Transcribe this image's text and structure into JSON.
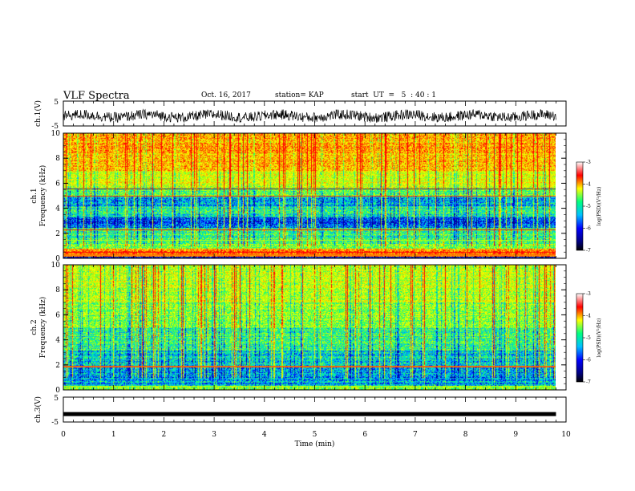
{
  "header": {
    "title": "VLF Spectra",
    "date": "Oct. 16, 2017",
    "station": "station= KAP",
    "start": "start  UT  =   5  : 40 : 1"
  },
  "chart_data": [
    {
      "type": "line",
      "panel": "ch1-waveform",
      "ylabel": "ch.1(V)",
      "xlim": [
        0,
        10
      ],
      "ylim": [
        -5,
        5
      ],
      "yticks": [
        "5",
        "-5"
      ],
      "series": [
        {
          "description": "noisy waveform fluctuating approximately between -3.5 V and 2.5 V, centered near -1 V"
        }
      ]
    },
    {
      "type": "heatmap",
      "panel": "ch1-spectrogram",
      "ylabel": "ch.1\nFrequency (kHz)",
      "xlim": [
        0,
        9.8
      ],
      "ylim": [
        0,
        10
      ],
      "yticks": [
        "0",
        "2",
        "4",
        "6",
        "8",
        "10"
      ],
      "colorbar": {
        "label": "log(PSD)(V²/Hz)",
        "range": [
          -7,
          -3
        ],
        "ticks": [
          "-3",
          "-4",
          "-5",
          "-6",
          "-7"
        ]
      },
      "features": [
        "dominant high power (red/yellow) from 5.5 to 10 kHz",
        "green/cyan band 0.5 to 5.5 kHz",
        "blue low power bands near 3 and 4.5 kHz",
        "horizontal interference lines near 0.3, 0.5, 2.3, 5.0, 5.6 kHz",
        "vertical broadband sferic streaks throughout"
      ]
    },
    {
      "type": "heatmap",
      "panel": "ch2-spectrogram",
      "ylabel": "ch.2\nFrequency (kHz)",
      "xlim": [
        0,
        9.8
      ],
      "ylim": [
        0,
        10
      ],
      "yticks": [
        "0",
        "2",
        "4",
        "6",
        "8",
        "10"
      ],
      "colorbar": {
        "label": "log(PSD)(V²/Hz)",
        "range": [
          -7,
          -3
        ],
        "ticks": [
          "-3",
          "-4",
          "-5",
          "-6",
          "-7"
        ]
      },
      "features": [
        "green/yellow power 2 to 10 kHz",
        "blue/cyan low power band 0 to 2 kHz",
        "horizontal line near 1.9 kHz",
        "vertical broadband sferic streaks throughout"
      ]
    },
    {
      "type": "line",
      "panel": "ch3-waveform",
      "ylabel": "ch.3(V)",
      "xlabel": "Time  (min)",
      "xlim": [
        0,
        10
      ],
      "ylim": [
        -5,
        5
      ],
      "yticks": [
        "5",
        "-5"
      ],
      "xticks": [
        "0",
        "1",
        "2",
        "3",
        "4",
        "5",
        "6",
        "7",
        "8",
        "9",
        "10"
      ],
      "series": [
        {
          "x": [
            0,
            9.8
          ],
          "y": [
            -1.8,
            -1.8
          ]
        }
      ]
    }
  ],
  "colors": {
    "axis": "#000000",
    "colormap": [
      "#000080",
      "#0000ff",
      "#00c0ff",
      "#00ff80",
      "#c0ff00",
      "#ffff00",
      "#ff8000",
      "#ff0000",
      "#ffffff"
    ]
  }
}
